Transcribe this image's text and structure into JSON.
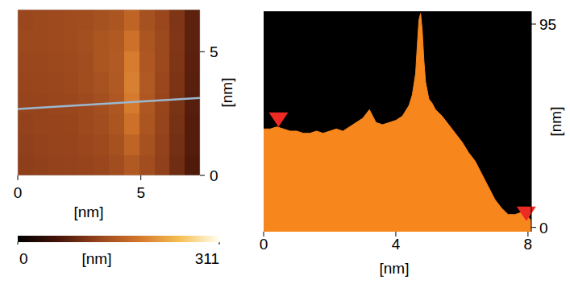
{
  "chart_data": [
    {
      "type": "heatmap",
      "x_label": "[nm]",
      "y_label": "[nm]",
      "xlim": [
        0,
        7.4
      ],
      "ylim": [
        0,
        6.7
      ],
      "xticks": [
        0,
        5
      ],
      "yticks": [
        0,
        5
      ],
      "cells": [
        [
          118,
          120,
          122,
          123,
          125,
          128,
          135,
          150,
          135,
          120,
          95,
          70
        ],
        [
          120,
          122,
          124,
          125,
          128,
          132,
          140,
          165,
          140,
          122,
          98,
          72
        ],
        [
          122,
          124,
          125,
          126,
          130,
          135,
          145,
          180,
          145,
          124,
          100,
          72
        ],
        [
          124,
          125,
          127,
          128,
          132,
          138,
          148,
          190,
          148,
          126,
          102,
          75
        ],
        [
          126,
          127,
          128,
          130,
          135,
          142,
          150,
          195,
          150,
          128,
          104,
          76
        ],
        [
          128,
          128,
          130,
          132,
          136,
          145,
          152,
          192,
          148,
          130,
          106,
          78
        ],
        [
          130,
          130,
          132,
          134,
          138,
          145,
          150,
          180,
          145,
          130,
          108,
          80
        ],
        [
          128,
          130,
          132,
          134,
          136,
          140,
          145,
          165,
          140,
          128,
          106,
          80
        ]
      ],
      "colorbar": {
        "label": "[nm]",
        "range": [
          0,
          311
        ],
        "ticks": [
          0,
          311
        ]
      },
      "profile_line": {
        "x": [
          0,
          7.4
        ],
        "y": [
          2.68,
          3.13
        ]
      }
    },
    {
      "type": "area",
      "x_label": "[nm]",
      "y_label": "[nm]",
      "xlim": [
        0,
        8.1
      ],
      "ylim": [
        -2,
        101
      ],
      "xticks": [
        0,
        4,
        8
      ],
      "yticks": [
        0,
        95
      ],
      "color": "#f7861c",
      "x": [
        0,
        0.2,
        0.4,
        0.6,
        0.8,
        1.0,
        1.2,
        1.4,
        1.6,
        1.8,
        2.0,
        2.2,
        2.4,
        2.6,
        2.8,
        3.0,
        3.1,
        3.2,
        3.3,
        3.4,
        3.6,
        3.8,
        4.0,
        4.2,
        4.4,
        4.5,
        4.6,
        4.65,
        4.7,
        4.75,
        4.8,
        4.85,
        4.9,
        5.0,
        5.1,
        5.2,
        5.4,
        5.6,
        5.8,
        6.0,
        6.2,
        6.4,
        6.6,
        6.8,
        7.0,
        7.2,
        7.4,
        7.6,
        7.8,
        8.0,
        8.1
      ],
      "values": [
        46,
        46,
        47,
        46,
        45,
        45,
        44,
        44,
        45,
        44,
        45,
        46,
        45,
        47,
        49,
        51,
        53,
        55,
        52,
        49,
        48,
        49,
        50,
        52,
        57,
        62,
        72,
        85,
        97,
        100,
        92,
        78,
        68,
        60,
        58,
        55,
        52,
        48,
        44,
        40,
        35,
        31,
        25,
        19,
        13,
        9,
        6,
        6,
        7,
        5,
        3
      ],
      "markers": {
        "x": [
          0.45,
          7.95
        ],
        "y": [
          47,
          3
        ]
      }
    }
  ]
}
